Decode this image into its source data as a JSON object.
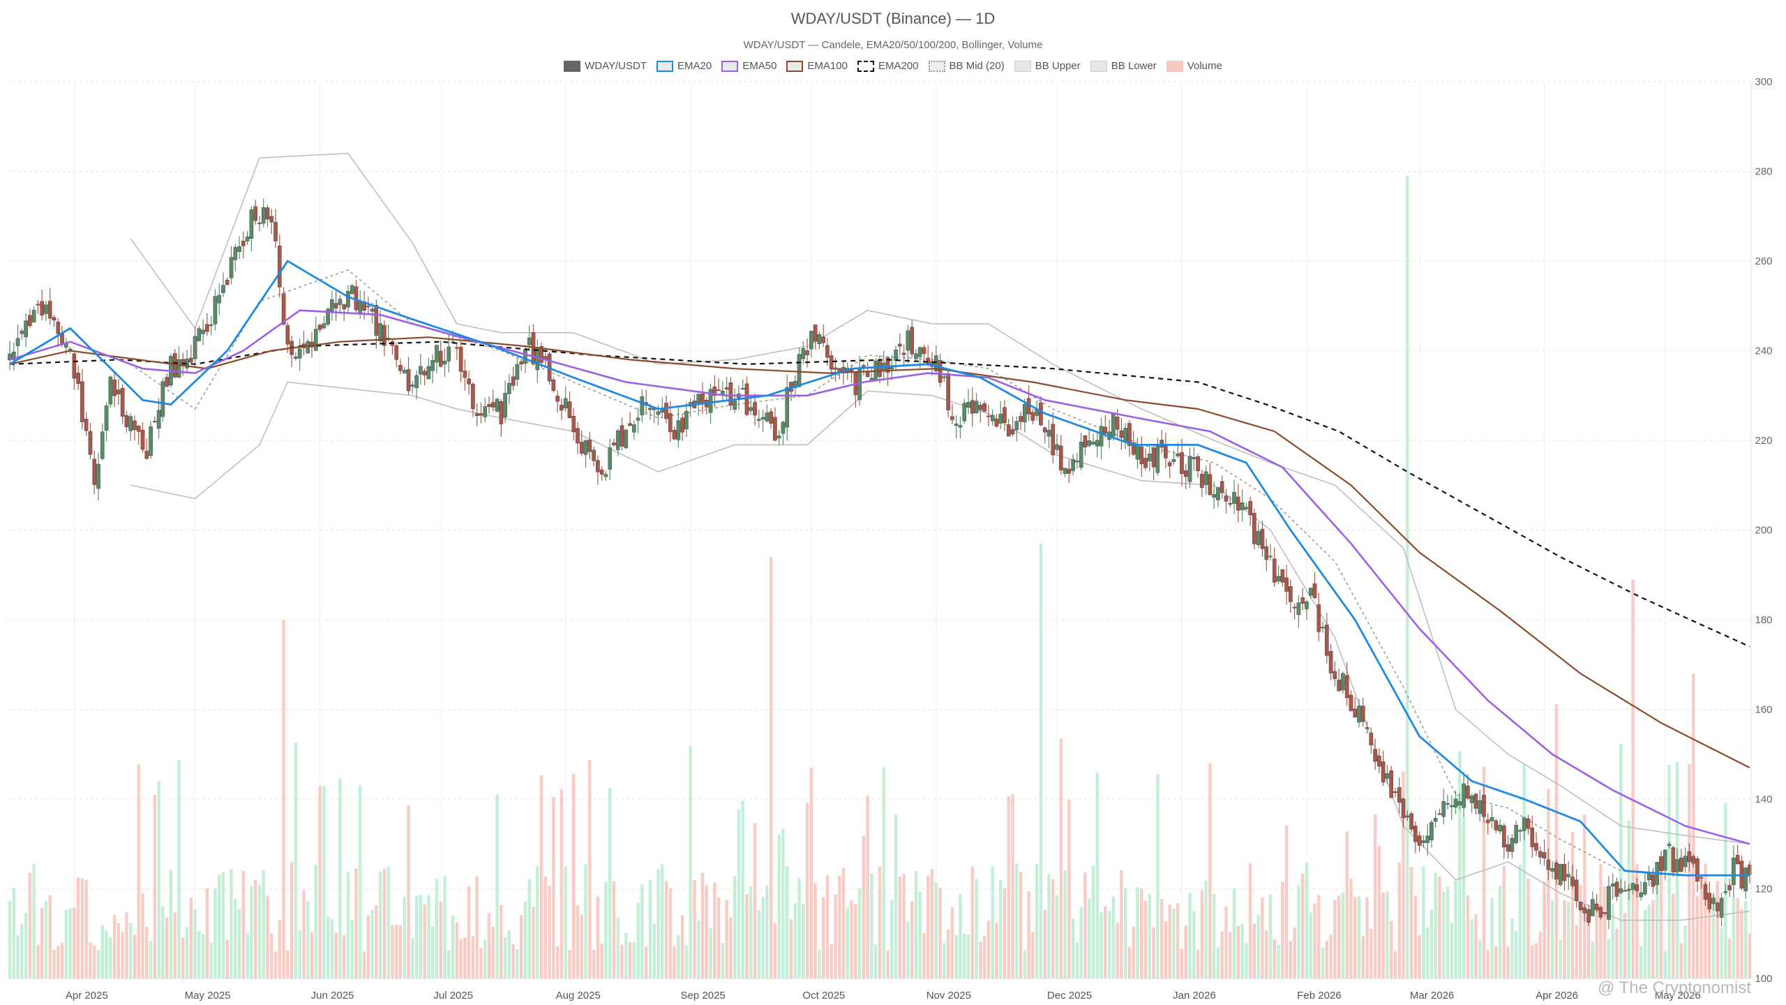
{
  "title": "WDAY/USDT (Binance) — 1D",
  "subtitle": "WDAY/USDT — Candele, EMA20/50/100/200, Bollinger, Volume",
  "watermark": "@ The Cryptonomist",
  "legend": [
    {
      "label": "WDAY/USDT",
      "color": "#666666",
      "style": "solid-fill"
    },
    {
      "label": "EMA20",
      "color": "#1e88e5",
      "style": "outline"
    },
    {
      "label": "EMA50",
      "color": "#9c5fe8",
      "style": "outline"
    },
    {
      "label": "EMA100",
      "color": "#8b4a2b",
      "style": "outline"
    },
    {
      "label": "EMA200",
      "color": "#111111",
      "style": "dashed"
    },
    {
      "label": "BB Mid (20)",
      "color": "#999999",
      "style": "dotted"
    },
    {
      "label": "BB Upper",
      "color": "#bbbbbb",
      "style": "light"
    },
    {
      "label": "BB Lower",
      "color": "#bbbbbb",
      "style": "light"
    },
    {
      "label": "Volume",
      "color": "#f4a9a0",
      "style": "light-fill"
    }
  ],
  "chart_data": {
    "type": "candlestick",
    "ylim": [
      100,
      300
    ],
    "y_ticks": [
      "100",
      "120",
      "140",
      "160",
      "180",
      "200",
      "220",
      "240",
      "260",
      "280",
      "300"
    ],
    "x_labels": [
      "Apr 2025",
      "May 2025",
      "Jun 2025",
      "Jul 2025",
      "Aug 2025",
      "Sep 2025",
      "Oct 2025",
      "Nov 2025",
      "Dec 2025",
      "Jan 2026",
      "Feb 2026",
      "Mar 2026",
      "Apr 2026",
      "May 2026"
    ],
    "x_label_dates": [
      "2025-04-01",
      "2025-05-01",
      "2025-06-01",
      "2025-07-01",
      "2025-08-01",
      "2025-09-01",
      "2025-10-01",
      "2025-11-01",
      "2025-12-01",
      "2026-01-01",
      "2026-02-01",
      "2026-03-01",
      "2026-04-01",
      "2026-05-01"
    ],
    "start_date": "2025-03-16",
    "end_date": "2026-05-22",
    "grid": true,
    "colors": {
      "up": "#5a8a6a",
      "down": "#a6594a",
      "ema20": "#1e88e5",
      "ema50": "#9c5fe8",
      "ema100": "#8b4a2b",
      "ema200": "#111111",
      "bb": "#bbbbbb",
      "bbmid": "#999999",
      "vol_up": "#b9ecd0",
      "vol_down": "#f7c3bb"
    },
    "close_path": [
      [
        "2025-03-16",
        237
      ],
      [
        "2025-03-22",
        250
      ],
      [
        "2025-03-27",
        246
      ],
      [
        "2025-04-01",
        236
      ],
      [
        "2025-04-06",
        210
      ],
      [
        "2025-04-10",
        232
      ],
      [
        "2025-04-14",
        225
      ],
      [
        "2025-04-19",
        217
      ],
      [
        "2025-04-24",
        235
      ],
      [
        "2025-04-30",
        240
      ],
      [
        "2025-05-05",
        247
      ],
      [
        "2025-05-10",
        258
      ],
      [
        "2025-05-15",
        270
      ],
      [
        "2025-05-20",
        270
      ],
      [
        "2025-05-24",
        240
      ],
      [
        "2025-05-31",
        244
      ],
      [
        "2025-06-06",
        251
      ],
      [
        "2025-06-11",
        252
      ],
      [
        "2025-06-16",
        244
      ],
      [
        "2025-06-22",
        233
      ],
      [
        "2025-06-28",
        238
      ],
      [
        "2025-07-04",
        240
      ],
      [
        "2025-07-10",
        228
      ],
      [
        "2025-07-16",
        226
      ],
      [
        "2025-07-23",
        241
      ],
      [
        "2025-07-29",
        232
      ],
      [
        "2025-08-05",
        220
      ],
      [
        "2025-08-10",
        214
      ],
      [
        "2025-08-15",
        221
      ],
      [
        "2025-08-22",
        230
      ],
      [
        "2025-08-28",
        222
      ],
      [
        "2025-09-04",
        230
      ],
      [
        "2025-09-10",
        231
      ],
      [
        "2025-09-16",
        228
      ],
      [
        "2025-09-22",
        221
      ],
      [
        "2025-09-27",
        236
      ],
      [
        "2025-10-02",
        243
      ],
      [
        "2025-10-07",
        236
      ],
      [
        "2025-10-12",
        233
      ],
      [
        "2025-10-19",
        237
      ],
      [
        "2025-10-25",
        243
      ],
      [
        "2025-11-01",
        237
      ],
      [
        "2025-11-06",
        224
      ],
      [
        "2025-11-12",
        228
      ],
      [
        "2025-11-18",
        222
      ],
      [
        "2025-11-24",
        226
      ],
      [
        "2025-11-28",
        224
      ],
      [
        "2025-12-03",
        212
      ],
      [
        "2025-12-09",
        219
      ],
      [
        "2025-12-15",
        224
      ],
      [
        "2025-12-22",
        216
      ],
      [
        "2025-12-28",
        217
      ],
      [
        "2026-01-03",
        214
      ],
      [
        "2026-01-09",
        210
      ],
      [
        "2026-01-15",
        207
      ],
      [
        "2026-01-21",
        195
      ],
      [
        "2026-01-27",
        184
      ],
      [
        "2026-02-02",
        186
      ],
      [
        "2026-02-06",
        172
      ],
      [
        "2026-02-12",
        162
      ],
      [
        "2026-02-18",
        150
      ],
      [
        "2026-02-24",
        137
      ],
      [
        "2026-03-01",
        127
      ],
      [
        "2026-03-07",
        139
      ],
      [
        "2026-03-12",
        143
      ],
      [
        "2026-03-17",
        137
      ],
      [
        "2026-03-22",
        130
      ],
      [
        "2026-03-27",
        133
      ],
      [
        "2026-04-01",
        127
      ],
      [
        "2026-04-06",
        123
      ],
      [
        "2026-04-11",
        115
      ],
      [
        "2026-04-16",
        117
      ],
      [
        "2026-04-21",
        121
      ],
      [
        "2026-04-26",
        120
      ],
      [
        "2026-05-02",
        127
      ],
      [
        "2026-05-08",
        123
      ],
      [
        "2026-05-14",
        116
      ],
      [
        "2026-05-18",
        124
      ],
      [
        "2026-05-22",
        122
      ]
    ],
    "ema_paths": {
      "ema20": [
        [
          "2025-03-16",
          237
        ],
        [
          "2025-03-31",
          245
        ],
        [
          "2025-04-18",
          229
        ],
        [
          "2025-04-25",
          228
        ],
        [
          "2025-05-09",
          240
        ],
        [
          "2025-05-24",
          260
        ],
        [
          "2025-06-08",
          252
        ],
        [
          "2025-06-24",
          247
        ],
        [
          "2025-07-14",
          241
        ],
        [
          "2025-08-03",
          234
        ],
        [
          "2025-08-24",
          227
        ],
        [
          "2025-09-20",
          230
        ],
        [
          "2025-10-11",
          236
        ],
        [
          "2025-10-30",
          237
        ],
        [
          "2025-11-12",
          234
        ],
        [
          "2025-11-28",
          226
        ],
        [
          "2025-12-20",
          219
        ],
        [
          "2026-01-05",
          219
        ],
        [
          "2026-01-17",
          215
        ],
        [
          "2026-01-28",
          200
        ],
        [
          "2026-02-13",
          180
        ],
        [
          "2026-03-01",
          154
        ],
        [
          "2026-03-14",
          144
        ],
        [
          "2026-03-27",
          140
        ],
        [
          "2026-04-10",
          135
        ],
        [
          "2026-04-21",
          124
        ],
        [
          "2026-05-06",
          123
        ],
        [
          "2026-05-22",
          123
        ]
      ],
      "ema50": [
        [
          "2025-03-16",
          238
        ],
        [
          "2025-03-31",
          242
        ],
        [
          "2025-04-18",
          236
        ],
        [
          "2025-05-01",
          235
        ],
        [
          "2025-05-13",
          240
        ],
        [
          "2025-05-27",
          249
        ],
        [
          "2025-06-16",
          248
        ],
        [
          "2025-07-06",
          243
        ],
        [
          "2025-07-27",
          238
        ],
        [
          "2025-08-16",
          233
        ],
        [
          "2025-09-10",
          230
        ],
        [
          "2025-09-30",
          230
        ],
        [
          "2025-10-14",
          233
        ],
        [
          "2025-10-30",
          235
        ],
        [
          "2025-11-14",
          234
        ],
        [
          "2025-11-28",
          229
        ],
        [
          "2025-12-21",
          225
        ],
        [
          "2026-01-08",
          222
        ],
        [
          "2026-01-26",
          214
        ],
        [
          "2026-02-12",
          197
        ],
        [
          "2026-03-01",
          178
        ],
        [
          "2026-03-18",
          162
        ],
        [
          "2026-04-03",
          150
        ],
        [
          "2026-04-18",
          142
        ],
        [
          "2026-05-06",
          134
        ],
        [
          "2026-05-22",
          130
        ]
      ],
      "ema100": [
        [
          "2025-03-16",
          237
        ],
        [
          "2025-03-31",
          240
        ],
        [
          "2025-04-17",
          238
        ],
        [
          "2025-05-04",
          236
        ],
        [
          "2025-05-20",
          240
        ],
        [
          "2025-06-06",
          242
        ],
        [
          "2025-06-28",
          243
        ],
        [
          "2025-07-22",
          241
        ],
        [
          "2025-08-17",
          238
        ],
        [
          "2025-09-12",
          236
        ],
        [
          "2025-10-05",
          235
        ],
        [
          "2025-11-01",
          236
        ],
        [
          "2025-11-25",
          233
        ],
        [
          "2025-12-18",
          229
        ],
        [
          "2026-01-05",
          227
        ],
        [
          "2026-01-24",
          222
        ],
        [
          "2026-02-12",
          210
        ],
        [
          "2026-03-01",
          195
        ],
        [
          "2026-03-21",
          182
        ],
        [
          "2026-04-10",
          168
        ],
        [
          "2026-04-30",
          157
        ],
        [
          "2026-05-22",
          147
        ]
      ],
      "ema200": [
        [
          "2025-03-16",
          237
        ],
        [
          "2025-04-12",
          238
        ],
        [
          "2025-05-01",
          237
        ],
        [
          "2025-05-27",
          241
        ],
        [
          "2025-07-01",
          242
        ],
        [
          "2025-08-08",
          239
        ],
        [
          "2025-09-15",
          237
        ],
        [
          "2025-10-20",
          238
        ],
        [
          "2025-11-30",
          236
        ],
        [
          "2026-01-05",
          233
        ],
        [
          "2026-01-22",
          228
        ],
        [
          "2026-02-09",
          222
        ],
        [
          "2026-02-26",
          213
        ],
        [
          "2026-03-16",
          204
        ],
        [
          "2026-04-05",
          194
        ],
        [
          "2026-04-25",
          185
        ],
        [
          "2026-05-22",
          174
        ]
      ]
    },
    "bb_paths": {
      "upper": [
        [
          "2025-04-15",
          265
        ],
        [
          "2025-05-01",
          245
        ],
        [
          "2025-05-17",
          283
        ],
        [
          "2025-06-08",
          284
        ],
        [
          "2025-06-24",
          264
        ],
        [
          "2025-07-05",
          246
        ],
        [
          "2025-07-16",
          244
        ],
        [
          "2025-08-03",
          244
        ],
        [
          "2025-08-24",
          237
        ],
        [
          "2025-09-12",
          238
        ],
        [
          "2025-09-30",
          241
        ],
        [
          "2025-10-15",
          249
        ],
        [
          "2025-10-31",
          246
        ],
        [
          "2025-11-14",
          246
        ],
        [
          "2025-11-30",
          237
        ],
        [
          "2025-12-22",
          227
        ],
        [
          "2026-01-09",
          220
        ],
        [
          "2026-01-23",
          215
        ],
        [
          "2026-02-08",
          210
        ],
        [
          "2026-02-25",
          196
        ],
        [
          "2026-03-10",
          160
        ],
        [
          "2026-03-23",
          150
        ],
        [
          "2026-04-05",
          143
        ],
        [
          "2026-04-20",
          134
        ],
        [
          "2026-05-05",
          132
        ],
        [
          "2026-05-22",
          130
        ]
      ],
      "lower": [
        [
          "2025-04-15",
          210
        ],
        [
          "2025-05-01",
          207
        ],
        [
          "2025-05-17",
          219
        ],
        [
          "2025-05-24",
          233
        ],
        [
          "2025-06-24",
          230
        ],
        [
          "2025-07-05",
          227
        ],
        [
          "2025-07-16",
          225
        ],
        [
          "2025-08-03",
          222
        ],
        [
          "2025-08-24",
          213
        ],
        [
          "2025-09-12",
          219
        ],
        [
          "2025-09-30",
          219
        ],
        [
          "2025-10-15",
          231
        ],
        [
          "2025-10-31",
          230
        ],
        [
          "2025-11-14",
          226
        ],
        [
          "2025-11-30",
          217
        ],
        [
          "2025-12-22",
          211
        ],
        [
          "2026-01-09",
          210
        ],
        [
          "2026-01-23",
          200
        ],
        [
          "2026-02-08",
          176
        ],
        [
          "2026-02-25",
          134
        ],
        [
          "2026-03-10",
          122
        ],
        [
          "2026-03-23",
          126
        ],
        [
          "2026-04-05",
          119
        ],
        [
          "2026-04-20",
          113
        ],
        [
          "2026-05-05",
          113
        ],
        [
          "2026-05-22",
          115
        ]
      ],
      "mid": [
        [
          "2025-04-15",
          237
        ],
        [
          "2025-05-01",
          227
        ],
        [
          "2025-05-17",
          251
        ],
        [
          "2025-06-08",
          258
        ],
        [
          "2025-06-24",
          246
        ],
        [
          "2025-07-16",
          240
        ],
        [
          "2025-08-03",
          233
        ],
        [
          "2025-08-24",
          225
        ],
        [
          "2025-09-12",
          228
        ],
        [
          "2025-09-30",
          230
        ],
        [
          "2025-10-15",
          239
        ],
        [
          "2025-10-31",
          238
        ],
        [
          "2025-11-14",
          236
        ],
        [
          "2025-11-30",
          227
        ],
        [
          "2025-12-22",
          219
        ],
        [
          "2026-01-09",
          215
        ],
        [
          "2026-01-23",
          207
        ],
        [
          "2026-02-08",
          193
        ],
        [
          "2026-02-25",
          165
        ],
        [
          "2026-03-10",
          141
        ],
        [
          "2026-03-23",
          138
        ],
        [
          "2026-04-05",
          131
        ],
        [
          "2026-04-20",
          124
        ],
        [
          "2026-05-05",
          123
        ],
        [
          "2026-05-22",
          123
        ]
      ]
    },
    "volume_spikes": [
      [
        "2025-05-23",
        80,
        "down"
      ],
      [
        "2025-09-21",
        94,
        "down"
      ],
      [
        "2025-10-01",
        47,
        "down"
      ],
      [
        "2025-11-27",
        97,
        "up"
      ],
      [
        "2026-01-08",
        48,
        "down"
      ],
      [
        "2026-02-26",
        179,
        "up"
      ],
      [
        "2026-04-23",
        89,
        "down"
      ],
      [
        "2026-05-08",
        68,
        "down"
      ],
      [
        "2026-05-27",
        70,
        "up"
      ]
    ]
  }
}
